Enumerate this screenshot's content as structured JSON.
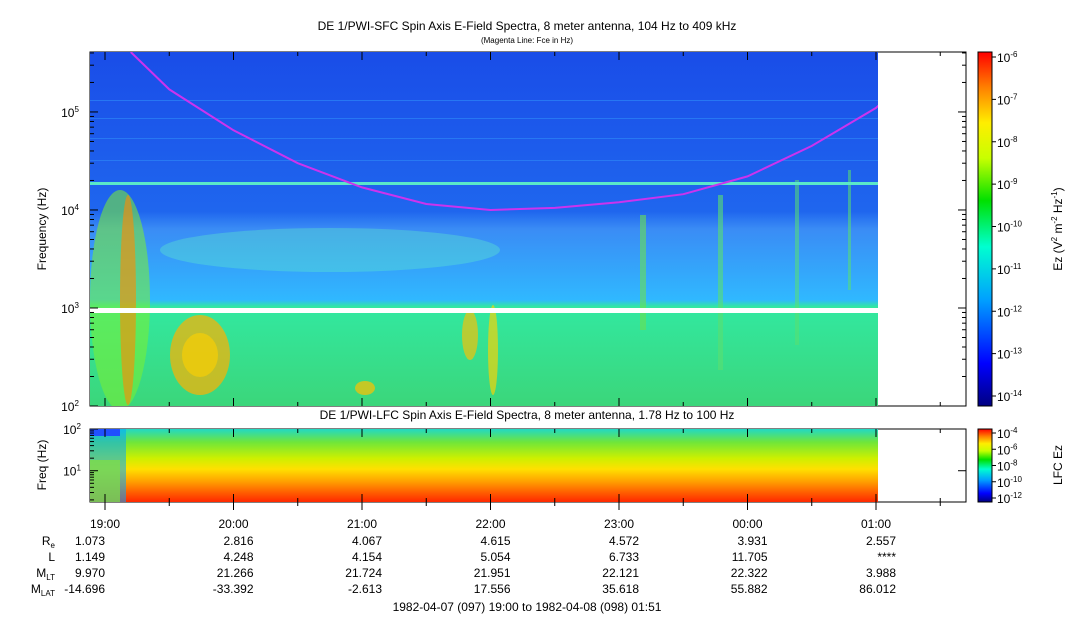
{
  "chart_data": [
    {
      "type": "heatmap",
      "title": "DE 1/PWI-SFC  Spin Axis E-Field Spectra, 8 meter antenna, 104 Hz to 409 kHz",
      "subtitle": "(Magenta Line: Fce in Hz)",
      "ylabel": "Frequency (Hz)",
      "yscale": "log",
      "ylim": [
        100,
        409000
      ],
      "yticks": [
        "10^2",
        "10^3",
        "10^4",
        "10^5"
      ],
      "colorbar_label_parts": [
        "Ez (V",
        "2",
        " m",
        "-2",
        " Hz",
        "-1",
        ")"
      ],
      "colorbar_scale": "log",
      "colorbar_range": [
        1e-14,
        1e-06
      ],
      "colorbar_ticks": [
        {
          "base": "10",
          "exp": "-6"
        },
        {
          "base": "10",
          "exp": "-7"
        },
        {
          "base": "10",
          "exp": "-8"
        },
        {
          "base": "10",
          "exp": "-9"
        },
        {
          "base": "10",
          "exp": "-10"
        },
        {
          "base": "10",
          "exp": "-11"
        },
        {
          "base": "10",
          "exp": "-12"
        },
        {
          "base": "10",
          "exp": "-13"
        },
        {
          "base": "10",
          "exp": "-14"
        }
      ],
      "fce_line": {
        "color": "#cc33ee",
        "points": [
          {
            "t": "19:12",
            "f": 409000
          },
          {
            "t": "19:30",
            "f": 170000
          },
          {
            "t": "20:00",
            "f": 65000
          },
          {
            "t": "20:30",
            "f": 30000
          },
          {
            "t": "21:00",
            "f": 17000
          },
          {
            "t": "21:30",
            "f": 11500
          },
          {
            "t": "22:00",
            "f": 10000
          },
          {
            "t": "22:30",
            "f": 10500
          },
          {
            "t": "23:00",
            "f": 12000
          },
          {
            "t": "23:30",
            "f": 14500
          },
          {
            "t": "00:00",
            "f": 22000
          },
          {
            "t": "00:30",
            "f": 45000
          },
          {
            "t": "01:00",
            "f": 110000
          },
          {
            "t": "01:06",
            "f": 145000
          }
        ]
      }
    },
    {
      "type": "heatmap",
      "title": "DE 1/PWI-LFC  Spin Axis E-Field Spectra, 8 meter antenna, 1.78 Hz to 100 Hz",
      "ylabel": "Freq (Hz)",
      "yscale": "log",
      "ylim": [
        1.78,
        100
      ],
      "yticks": [
        "10^1",
        "10^2"
      ],
      "colorbar_label": "LFC Ez",
      "colorbar_scale": "log",
      "colorbar_range": [
        1e-12,
        0.0001
      ],
      "colorbar_ticks": [
        {
          "base": "10",
          "exp": "-4"
        },
        {
          "base": "10",
          "exp": "-6"
        },
        {
          "base": "10",
          "exp": "-8"
        },
        {
          "base": "10",
          "exp": "-10"
        },
        {
          "base": "10",
          "exp": "-12"
        }
      ]
    }
  ],
  "x_axis": {
    "tick_labels": [
      "19:00",
      "20:00",
      "21:00",
      "22:00",
      "23:00",
      "00:00",
      "01:00"
    ],
    "ephemeris": [
      {
        "label": "R",
        "sub": "e",
        "first": "1.073",
        "values": [
          "2.816",
          "4.067",
          "4.615",
          "4.572",
          "3.931",
          "2.557"
        ]
      },
      {
        "label": "L",
        "sub": "",
        "first": "1.149",
        "values": [
          "4.248",
          "4.154",
          "5.054",
          "6.733",
          "11.705",
          "****"
        ]
      },
      {
        "label": "M",
        "sub": "LT",
        "first": "9.970",
        "values": [
          "21.266",
          "21.724",
          "21.951",
          "22.121",
          "22.322",
          "3.988"
        ]
      },
      {
        "label": "M",
        "sub": "LAT",
        "first": "-14.696",
        "values": [
          "-33.392",
          "-2.613",
          "17.556",
          "35.618",
          "55.882",
          "86.012"
        ]
      }
    ],
    "time_range": "1982-04-07 (097) 19:00 to 1982-04-08 (098) 01:51"
  }
}
